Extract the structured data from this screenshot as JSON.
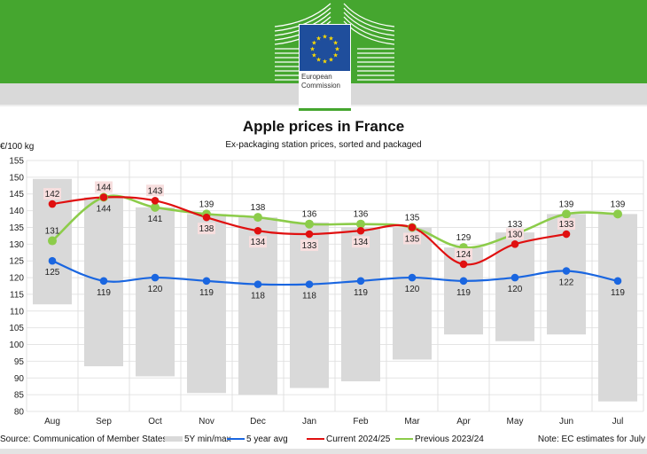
{
  "header": {
    "logo_text_line1": "European",
    "logo_text_line2": "Commission",
    "brand_color": "#45a62f"
  },
  "chart_data": {
    "type": "line",
    "title": "Apple prices in France",
    "subtitle": "Ex-packaging station prices, sorted and packaged",
    "ylabel": "€/100 kg",
    "ylim": [
      80,
      155
    ],
    "yticks": [
      80,
      85,
      90,
      95,
      100,
      105,
      110,
      115,
      120,
      125,
      130,
      135,
      140,
      145,
      150,
      155
    ],
    "grid": true,
    "categories": [
      "Aug",
      "Sep",
      "Oct",
      "Nov",
      "Dec",
      "Jan",
      "Feb",
      "Mar",
      "Apr",
      "May",
      "Jun",
      "Jul"
    ],
    "range": {
      "name": "5Y min/max",
      "color": "#d9d9d9",
      "min": [
        112,
        93.5,
        90.5,
        85.5,
        85,
        87,
        89,
        95.5,
        103,
        101,
        103,
        83
      ],
      "max": [
        149.5,
        144,
        141,
        139,
        138,
        136.5,
        135,
        135,
        129,
        133.5,
        139,
        139
      ]
    },
    "series": [
      {
        "name": "5 year avg",
        "color": "#1a66e0",
        "values": [
          125,
          119,
          120,
          119,
          118,
          118,
          119,
          120,
          119,
          120,
          122,
          119
        ]
      },
      {
        "name": "Current 2024/25",
        "color": "#e01010",
        "values": [
          142,
          144,
          143,
          138,
          134,
          133,
          134,
          135,
          124,
          130,
          133,
          null
        ]
      },
      {
        "name": "Previous 2023/24",
        "color": "#8ccc4a",
        "values": [
          131,
          144,
          141,
          139,
          138,
          136,
          136,
          135,
          129,
          133,
          139,
          139
        ]
      }
    ],
    "legend_position": "bottom"
  },
  "footer": {
    "source": "Source: Communication of Member States",
    "note": "Note: EC estimates for July"
  }
}
